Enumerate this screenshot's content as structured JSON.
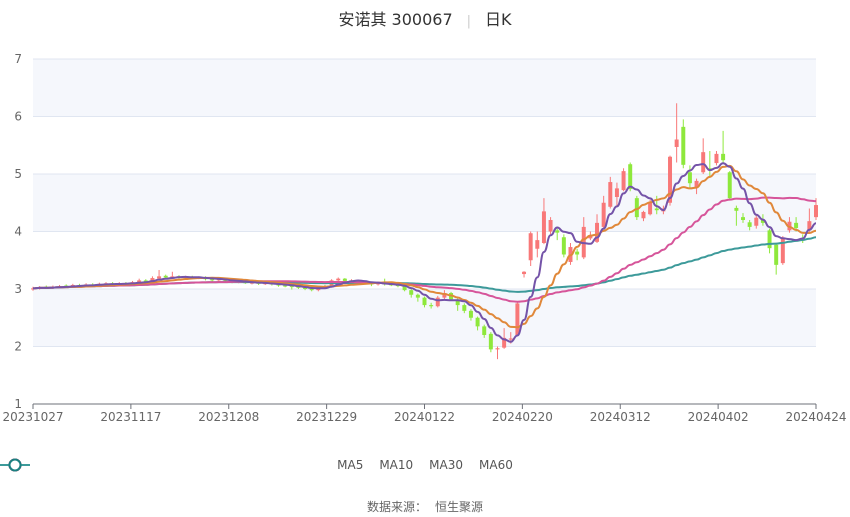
{
  "title": {
    "name": "安诺其 300067",
    "period": "日K"
  },
  "chart_data": {
    "type": "candlestick",
    "ylim": [
      1,
      7
    ],
    "y_ticks": [
      "1",
      "2",
      "3",
      "4",
      "5",
      "6",
      "7"
    ],
    "x_tick_labels": [
      "20231027",
      "20231117",
      "20231208",
      "20231229",
      "20240122",
      "20240220",
      "20240312",
      "20240402",
      "20240424"
    ],
    "grid": true,
    "up_color": "#f87878",
    "down_color": "#8ee83c",
    "ohlc_format": [
      "open",
      "close",
      "low",
      "high"
    ],
    "candles": [
      [
        3.0,
        3.01,
        2.97,
        3.04
      ],
      [
        3.01,
        3.03,
        2.99,
        3.05
      ],
      [
        3.04,
        3.02,
        3.0,
        3.06
      ],
      [
        3.02,
        3.04,
        3.0,
        3.06
      ],
      [
        3.04,
        3.05,
        3.02,
        3.07
      ],
      [
        3.06,
        3.04,
        3.02,
        3.08
      ],
      [
        3.04,
        3.07,
        3.03,
        3.09
      ],
      [
        3.07,
        3.06,
        3.04,
        3.09
      ],
      [
        3.06,
        3.08,
        3.05,
        3.1
      ],
      [
        3.08,
        3.07,
        3.05,
        3.1
      ],
      [
        3.07,
        3.09,
        3.05,
        3.11
      ],
      [
        3.09,
        3.1,
        3.07,
        3.12
      ],
      [
        3.1,
        3.08,
        3.06,
        3.12
      ],
      [
        3.08,
        3.1,
        3.06,
        3.12
      ],
      [
        3.1,
        3.09,
        3.07,
        3.12
      ],
      [
        3.09,
        3.12,
        3.07,
        3.14
      ],
      [
        3.12,
        3.15,
        3.1,
        3.18
      ],
      [
        3.15,
        3.13,
        3.11,
        3.17
      ],
      [
        3.13,
        3.19,
        3.12,
        3.22
      ],
      [
        3.18,
        3.22,
        3.16,
        3.33
      ],
      [
        3.23,
        3.2,
        3.18,
        3.25
      ],
      [
        3.2,
        3.22,
        3.18,
        3.3
      ],
      [
        3.22,
        3.2,
        3.18,
        3.24
      ],
      [
        3.2,
        3.21,
        3.18,
        3.23
      ],
      [
        3.21,
        3.19,
        3.17,
        3.23
      ],
      [
        3.19,
        3.2,
        3.17,
        3.22
      ],
      [
        3.2,
        3.17,
        3.15,
        3.22
      ],
      [
        3.17,
        3.15,
        3.12,
        3.19
      ],
      [
        3.15,
        3.17,
        3.13,
        3.19
      ],
      [
        3.17,
        3.14,
        3.12,
        3.19
      ],
      [
        3.14,
        3.12,
        3.1,
        3.16
      ],
      [
        3.12,
        3.13,
        3.1,
        3.15
      ],
      [
        3.13,
        3.1,
        3.09,
        3.15
      ],
      [
        3.1,
        3.11,
        3.08,
        3.13
      ],
      [
        3.11,
        3.09,
        3.07,
        3.13
      ],
      [
        3.09,
        3.1,
        3.07,
        3.12
      ],
      [
        3.1,
        3.08,
        3.06,
        3.12
      ],
      [
        3.08,
        3.06,
        3.04,
        3.1
      ],
      [
        3.06,
        3.05,
        3.03,
        3.08
      ],
      [
        3.05,
        3.04,
        2.99,
        3.07
      ],
      [
        3.04,
        3.02,
        3.0,
        3.06
      ],
      [
        3.02,
        3.0,
        2.98,
        3.04
      ],
      [
        3.0,
        2.98,
        2.96,
        3.02
      ],
      [
        2.98,
        3.02,
        2.96,
        3.04
      ],
      [
        3.02,
        3.05,
        3.0,
        3.07
      ],
      [
        3.06,
        3.15,
        3.05,
        3.17
      ],
      [
        3.15,
        3.18,
        3.13,
        3.2
      ],
      [
        3.18,
        3.14,
        3.12,
        3.19
      ],
      [
        3.14,
        3.15,
        3.12,
        3.17
      ],
      [
        3.15,
        3.12,
        3.1,
        3.16
      ],
      [
        3.12,
        3.1,
        3.08,
        3.14
      ],
      [
        3.1,
        3.08,
        3.05,
        3.12
      ],
      [
        3.08,
        3.1,
        3.06,
        3.12
      ],
      [
        3.1,
        3.08,
        3.06,
        3.18
      ],
      [
        3.08,
        3.07,
        3.05,
        3.1
      ],
      [
        3.07,
        3.05,
        3.03,
        3.09
      ],
      [
        3.05,
        2.98,
        2.96,
        3.07
      ],
      [
        2.98,
        2.9,
        2.85,
        3.0
      ],
      [
        2.9,
        2.85,
        2.78,
        2.92
      ],
      [
        2.85,
        2.72,
        2.68,
        2.87
      ],
      [
        2.72,
        2.7,
        2.66,
        2.76
      ],
      [
        2.7,
        2.85,
        2.68,
        2.88
      ],
      [
        2.85,
        2.93,
        2.82,
        2.98
      ],
      [
        2.93,
        2.82,
        2.8,
        2.95
      ],
      [
        2.82,
        2.72,
        2.62,
        2.84
      ],
      [
        2.72,
        2.62,
        2.58,
        2.75
      ],
      [
        2.62,
        2.5,
        2.45,
        2.65
      ],
      [
        2.5,
        2.35,
        2.28,
        2.52
      ],
      [
        2.35,
        2.2,
        2.15,
        2.38
      ],
      [
        2.22,
        1.95,
        1.9,
        2.25
      ],
      [
        1.95,
        1.97,
        1.78,
        2.0
      ],
      [
        1.98,
        2.15,
        1.96,
        2.32
      ],
      [
        2.12,
        2.14,
        2.05,
        2.25
      ],
      [
        2.2,
        2.75,
        2.18,
        2.78
      ],
      [
        3.26,
        3.3,
        3.2,
        3.31
      ],
      [
        3.5,
        3.97,
        3.4,
        4.0
      ],
      [
        3.7,
        3.85,
        3.55,
        4.0
      ],
      [
        3.8,
        4.35,
        3.78,
        4.58
      ],
      [
        4.0,
        4.2,
        3.95,
        4.25
      ],
      [
        4.02,
        3.98,
        3.85,
        4.05
      ],
      [
        3.9,
        3.6,
        3.55,
        3.95
      ],
      [
        3.47,
        3.73,
        3.42,
        3.8
      ],
      [
        3.65,
        3.6,
        3.5,
        3.7
      ],
      [
        3.55,
        4.08,
        3.52,
        4.25
      ],
      [
        3.88,
        3.92,
        3.85,
        4.0
      ],
      [
        3.82,
        4.15,
        3.8,
        4.3
      ],
      [
        4.08,
        4.5,
        4.05,
        4.62
      ],
      [
        4.43,
        4.86,
        4.4,
        4.95
      ],
      [
        4.6,
        4.75,
        4.45,
        4.85
      ],
      [
        4.72,
        5.05,
        4.7,
        5.1
      ],
      [
        5.17,
        4.74,
        4.7,
        5.2
      ],
      [
        4.58,
        4.25,
        4.2,
        4.62
      ],
      [
        4.23,
        4.34,
        4.18,
        4.36
      ],
      [
        4.3,
        4.5,
        4.28,
        4.55
      ],
      [
        4.4,
        4.37,
        4.3,
        4.62
      ],
      [
        4.35,
        4.4,
        4.3,
        4.45
      ],
      [
        4.5,
        5.3,
        4.45,
        5.32
      ],
      [
        5.47,
        5.6,
        5.2,
        6.23
      ],
      [
        5.82,
        5.16,
        5.1,
        5.95
      ],
      [
        5.03,
        4.84,
        4.75,
        5.15
      ],
      [
        4.77,
        4.88,
        4.65,
        4.92
      ],
      [
        5.03,
        5.38,
        5.0,
        5.62
      ],
      [
        5.1,
        5.08,
        4.95,
        5.4
      ],
      [
        5.19,
        5.35,
        5.15,
        5.4
      ],
      [
        5.35,
        5.24,
        5.2,
        5.75
      ],
      [
        5.03,
        4.58,
        4.55,
        5.05
      ],
      [
        4.41,
        4.36,
        4.1,
        4.45
      ],
      [
        4.25,
        4.2,
        4.15,
        4.32
      ],
      [
        4.16,
        4.08,
        4.02,
        4.2
      ],
      [
        4.1,
        4.24,
        4.05,
        4.3
      ],
      [
        4.2,
        4.15,
        4.1,
        4.3
      ],
      [
        4.02,
        3.71,
        3.62,
        4.05
      ],
      [
        3.77,
        3.42,
        3.25,
        3.8
      ],
      [
        3.45,
        3.89,
        3.42,
        3.92
      ],
      [
        4.02,
        4.17,
        3.98,
        4.25
      ],
      [
        4.15,
        4.06,
        4.0,
        4.25
      ],
      [
        3.88,
        3.85,
        3.8,
        3.95
      ],
      [
        4.02,
        4.18,
        3.98,
        4.4
      ],
      [
        4.25,
        4.46,
        4.2,
        4.58
      ]
    ],
    "series": [
      {
        "name": "MA5",
        "period": 5,
        "color": "#7453a8",
        "legend_color": "#4b1e9e"
      },
      {
        "name": "MA10",
        "period": 10,
        "color": "#e0883a",
        "legend_color": "#e07010"
      },
      {
        "name": "MA30",
        "period": 30,
        "color": "#d6559a",
        "legend_color": "#d0288a"
      },
      {
        "name": "MA60",
        "period": 60,
        "color": "#3d9a9a",
        "legend_color": "#1a8080"
      }
    ],
    "legend_position": "bottom"
  },
  "source": {
    "label": "数据来源：",
    "value": "恒生聚源"
  }
}
